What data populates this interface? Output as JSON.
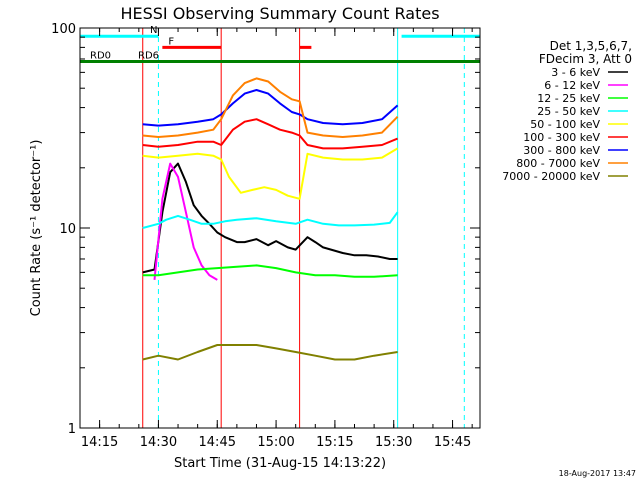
{
  "chart_data": {
    "type": "line",
    "title": "HESSI Observing Summary Count Rates",
    "xlabel": "Start Time (31-Aug-15 14:13:22)",
    "ylabel": "Count Rate (s⁻¹ detector⁻¹)",
    "yscale": "log",
    "ylim": [
      1,
      100
    ],
    "xlim": [
      "14:10",
      "15:52"
    ],
    "x_ticks": [
      "14:15",
      "14:30",
      "14:45",
      "15:00",
      "15:15",
      "15:30",
      "15:45"
    ],
    "y_ticks": [
      {
        "value": 1,
        "label": "1"
      },
      {
        "value": 10,
        "label": "10"
      },
      {
        "value": 100,
        "label": "100"
      }
    ],
    "legend_header": [
      "Det 1,3,5,6,7,",
      "FDecim 3, Att 0"
    ],
    "legend_placement": "right",
    "series": [
      {
        "name": "3 - 6 keV",
        "color": "#000000",
        "x": [
          "14:26",
          "14:29",
          "14:31",
          "14:33",
          "14:35",
          "14:37",
          "14:39",
          "14:41",
          "14:43",
          "14:45",
          "14:47",
          "14:50",
          "14:52",
          "14:55",
          "14:58",
          "15:00",
          "15:03",
          "15:05",
          "15:08",
          "15:10",
          "15:12",
          "15:14",
          "15:17",
          "15:20",
          "15:23",
          "15:26",
          "15:29",
          "15:31"
        ],
        "values": [
          6.0,
          6.2,
          12.0,
          19.0,
          21.0,
          17.0,
          13.0,
          11.5,
          10.5,
          9.5,
          9.0,
          8.5,
          8.5,
          8.8,
          8.2,
          8.6,
          8.0,
          7.8,
          9.0,
          8.5,
          8.0,
          7.8,
          7.5,
          7.3,
          7.3,
          7.2,
          7.0,
          7.0
        ]
      },
      {
        "name": "6 - 12 keV",
        "color": "#ff00ff",
        "x": [
          "14:29",
          "14:31",
          "14:33",
          "14:35",
          "14:37",
          "14:39",
          "14:41",
          "14:43",
          "14:45"
        ],
        "values": [
          5.5,
          14.0,
          21.0,
          18.0,
          12.0,
          8.0,
          6.5,
          5.8,
          5.5
        ]
      },
      {
        "name": "12 - 25 keV",
        "color": "#00ff00",
        "x": [
          "14:26",
          "14:30",
          "14:35",
          "14:40",
          "14:45",
          "14:50",
          "14:55",
          "15:00",
          "15:05",
          "15:10",
          "15:15",
          "15:20",
          "15:25",
          "15:31"
        ],
        "values": [
          5.8,
          5.8,
          6.0,
          6.2,
          6.3,
          6.4,
          6.5,
          6.3,
          6.0,
          5.8,
          5.8,
          5.7,
          5.7,
          5.8
        ]
      },
      {
        "name": "25 - 50 keV",
        "color": "#00ffff",
        "x": [
          "14:26",
          "14:30",
          "14:32",
          "14:35",
          "14:38",
          "14:41",
          "14:44",
          "14:47",
          "14:50",
          "14:55",
          "15:00",
          "15:05",
          "15:08",
          "15:12",
          "15:16",
          "15:20",
          "15:25",
          "15:29",
          "15:31"
        ],
        "values": [
          10.0,
          10.5,
          11.0,
          11.5,
          11.0,
          10.5,
          10.5,
          10.8,
          11.0,
          11.2,
          10.8,
          10.5,
          11.0,
          10.5,
          10.3,
          10.3,
          10.4,
          10.6,
          12.0
        ]
      },
      {
        "name": "50 - 100 keV",
        "color": "#ffff00",
        "x": [
          "14:26",
          "14:30",
          "14:35",
          "14:40",
          "14:44",
          "14:46",
          "14:48",
          "14:51",
          "14:54",
          "14:57",
          "15:00",
          "15:03",
          "15:06",
          "15:08",
          "15:12",
          "15:17",
          "15:22",
          "15:27",
          "15:31"
        ],
        "values": [
          23.0,
          22.5,
          23.0,
          23.5,
          23.0,
          22.0,
          18.0,
          15.0,
          15.5,
          16.0,
          15.5,
          14.5,
          14.0,
          23.5,
          22.5,
          22.0,
          22.0,
          22.5,
          25.0
        ]
      },
      {
        "name": "100 - 300 keV",
        "color": "#ff0000",
        "x": [
          "14:26",
          "14:30",
          "14:35",
          "14:40",
          "14:44",
          "14:46",
          "14:49",
          "14:52",
          "14:55",
          "14:58",
          "15:01",
          "15:04",
          "15:06",
          "15:08",
          "15:12",
          "15:17",
          "15:22",
          "15:27",
          "15:31"
        ],
        "values": [
          26.0,
          25.5,
          26.0,
          27.0,
          27.0,
          26.0,
          31.0,
          34.0,
          35.0,
          33.0,
          31.0,
          30.0,
          29.0,
          26.0,
          25.0,
          25.0,
          25.5,
          26.0,
          28.0
        ]
      },
      {
        "name": "300 - 800 keV",
        "color": "#0000ff",
        "x": [
          "14:26",
          "14:30",
          "14:35",
          "14:40",
          "14:44",
          "14:46",
          "14:49",
          "14:52",
          "14:55",
          "14:58",
          "15:01",
          "15:04",
          "15:06",
          "15:08",
          "15:12",
          "15:17",
          "15:22",
          "15:27",
          "15:31"
        ],
        "values": [
          33.0,
          32.5,
          33.0,
          34.0,
          35.0,
          37.0,
          42.0,
          47.0,
          49.0,
          47.0,
          42.0,
          38.0,
          37.0,
          35.0,
          33.5,
          33.0,
          33.5,
          35.0,
          41.0
        ]
      },
      {
        "name": "800 - 7000 keV",
        "color": "#ff8000",
        "x": [
          "14:26",
          "14:30",
          "14:35",
          "14:40",
          "14:44",
          "14:46",
          "14:49",
          "14:52",
          "14:55",
          "14:58",
          "15:01",
          "15:04",
          "15:06",
          "15:08",
          "15:12",
          "15:17",
          "15:22",
          "15:27",
          "15:31"
        ],
        "values": [
          29.0,
          28.5,
          29.0,
          30.0,
          31.0,
          35.0,
          46.0,
          53.0,
          56.0,
          54.0,
          48.0,
          44.0,
          43.0,
          30.0,
          29.0,
          28.5,
          29.0,
          30.0,
          36.0
        ]
      },
      {
        "name": "7000 - 20000 keV",
        "color": "#808000",
        "x": [
          "14:26",
          "14:30",
          "14:35",
          "14:40",
          "14:45",
          "14:50",
          "14:55",
          "15:00",
          "15:05",
          "15:10",
          "15:15",
          "15:20",
          "15:25",
          "15:31"
        ],
        "values": [
          2.2,
          2.3,
          2.2,
          2.4,
          2.6,
          2.6,
          2.6,
          2.5,
          2.4,
          2.3,
          2.2,
          2.2,
          2.3,
          2.4
        ]
      }
    ],
    "flag_bars": [
      {
        "label": "N",
        "color": "#00ffff",
        "level": 91,
        "segments": [
          [
            "14:10",
            "14:30"
          ],
          [
            "15:32",
            "15:52"
          ]
        ]
      },
      {
        "label": "F",
        "color": "#ff0000",
        "level": 80,
        "segments": [
          [
            "14:31",
            "14:46"
          ],
          [
            "15:06",
            "15:09"
          ]
        ]
      },
      {
        "label": "RD0",
        "color": "#008000",
        "level": 68,
        "segments": [
          [
            "14:10",
            "15:52"
          ]
        ]
      },
      {
        "label": "RD6",
        "color": "#008000",
        "level": 68,
        "segments": []
      }
    ],
    "vertical_lines": [
      {
        "x": "14:26",
        "color": "#ff0000",
        "style": "solid"
      },
      {
        "x": "14:30",
        "color": "#00ffff",
        "style": "dashed"
      },
      {
        "x": "14:46",
        "color": "#ff0000",
        "style": "solid"
      },
      {
        "x": "15:06",
        "color": "#ff0000",
        "style": "solid"
      },
      {
        "x": "15:31",
        "color": "#00ffff",
        "style": "solid"
      },
      {
        "x": "15:48",
        "color": "#00ffff",
        "style": "dashed"
      }
    ],
    "footer_date": "18-Aug-2017 13:47"
  }
}
